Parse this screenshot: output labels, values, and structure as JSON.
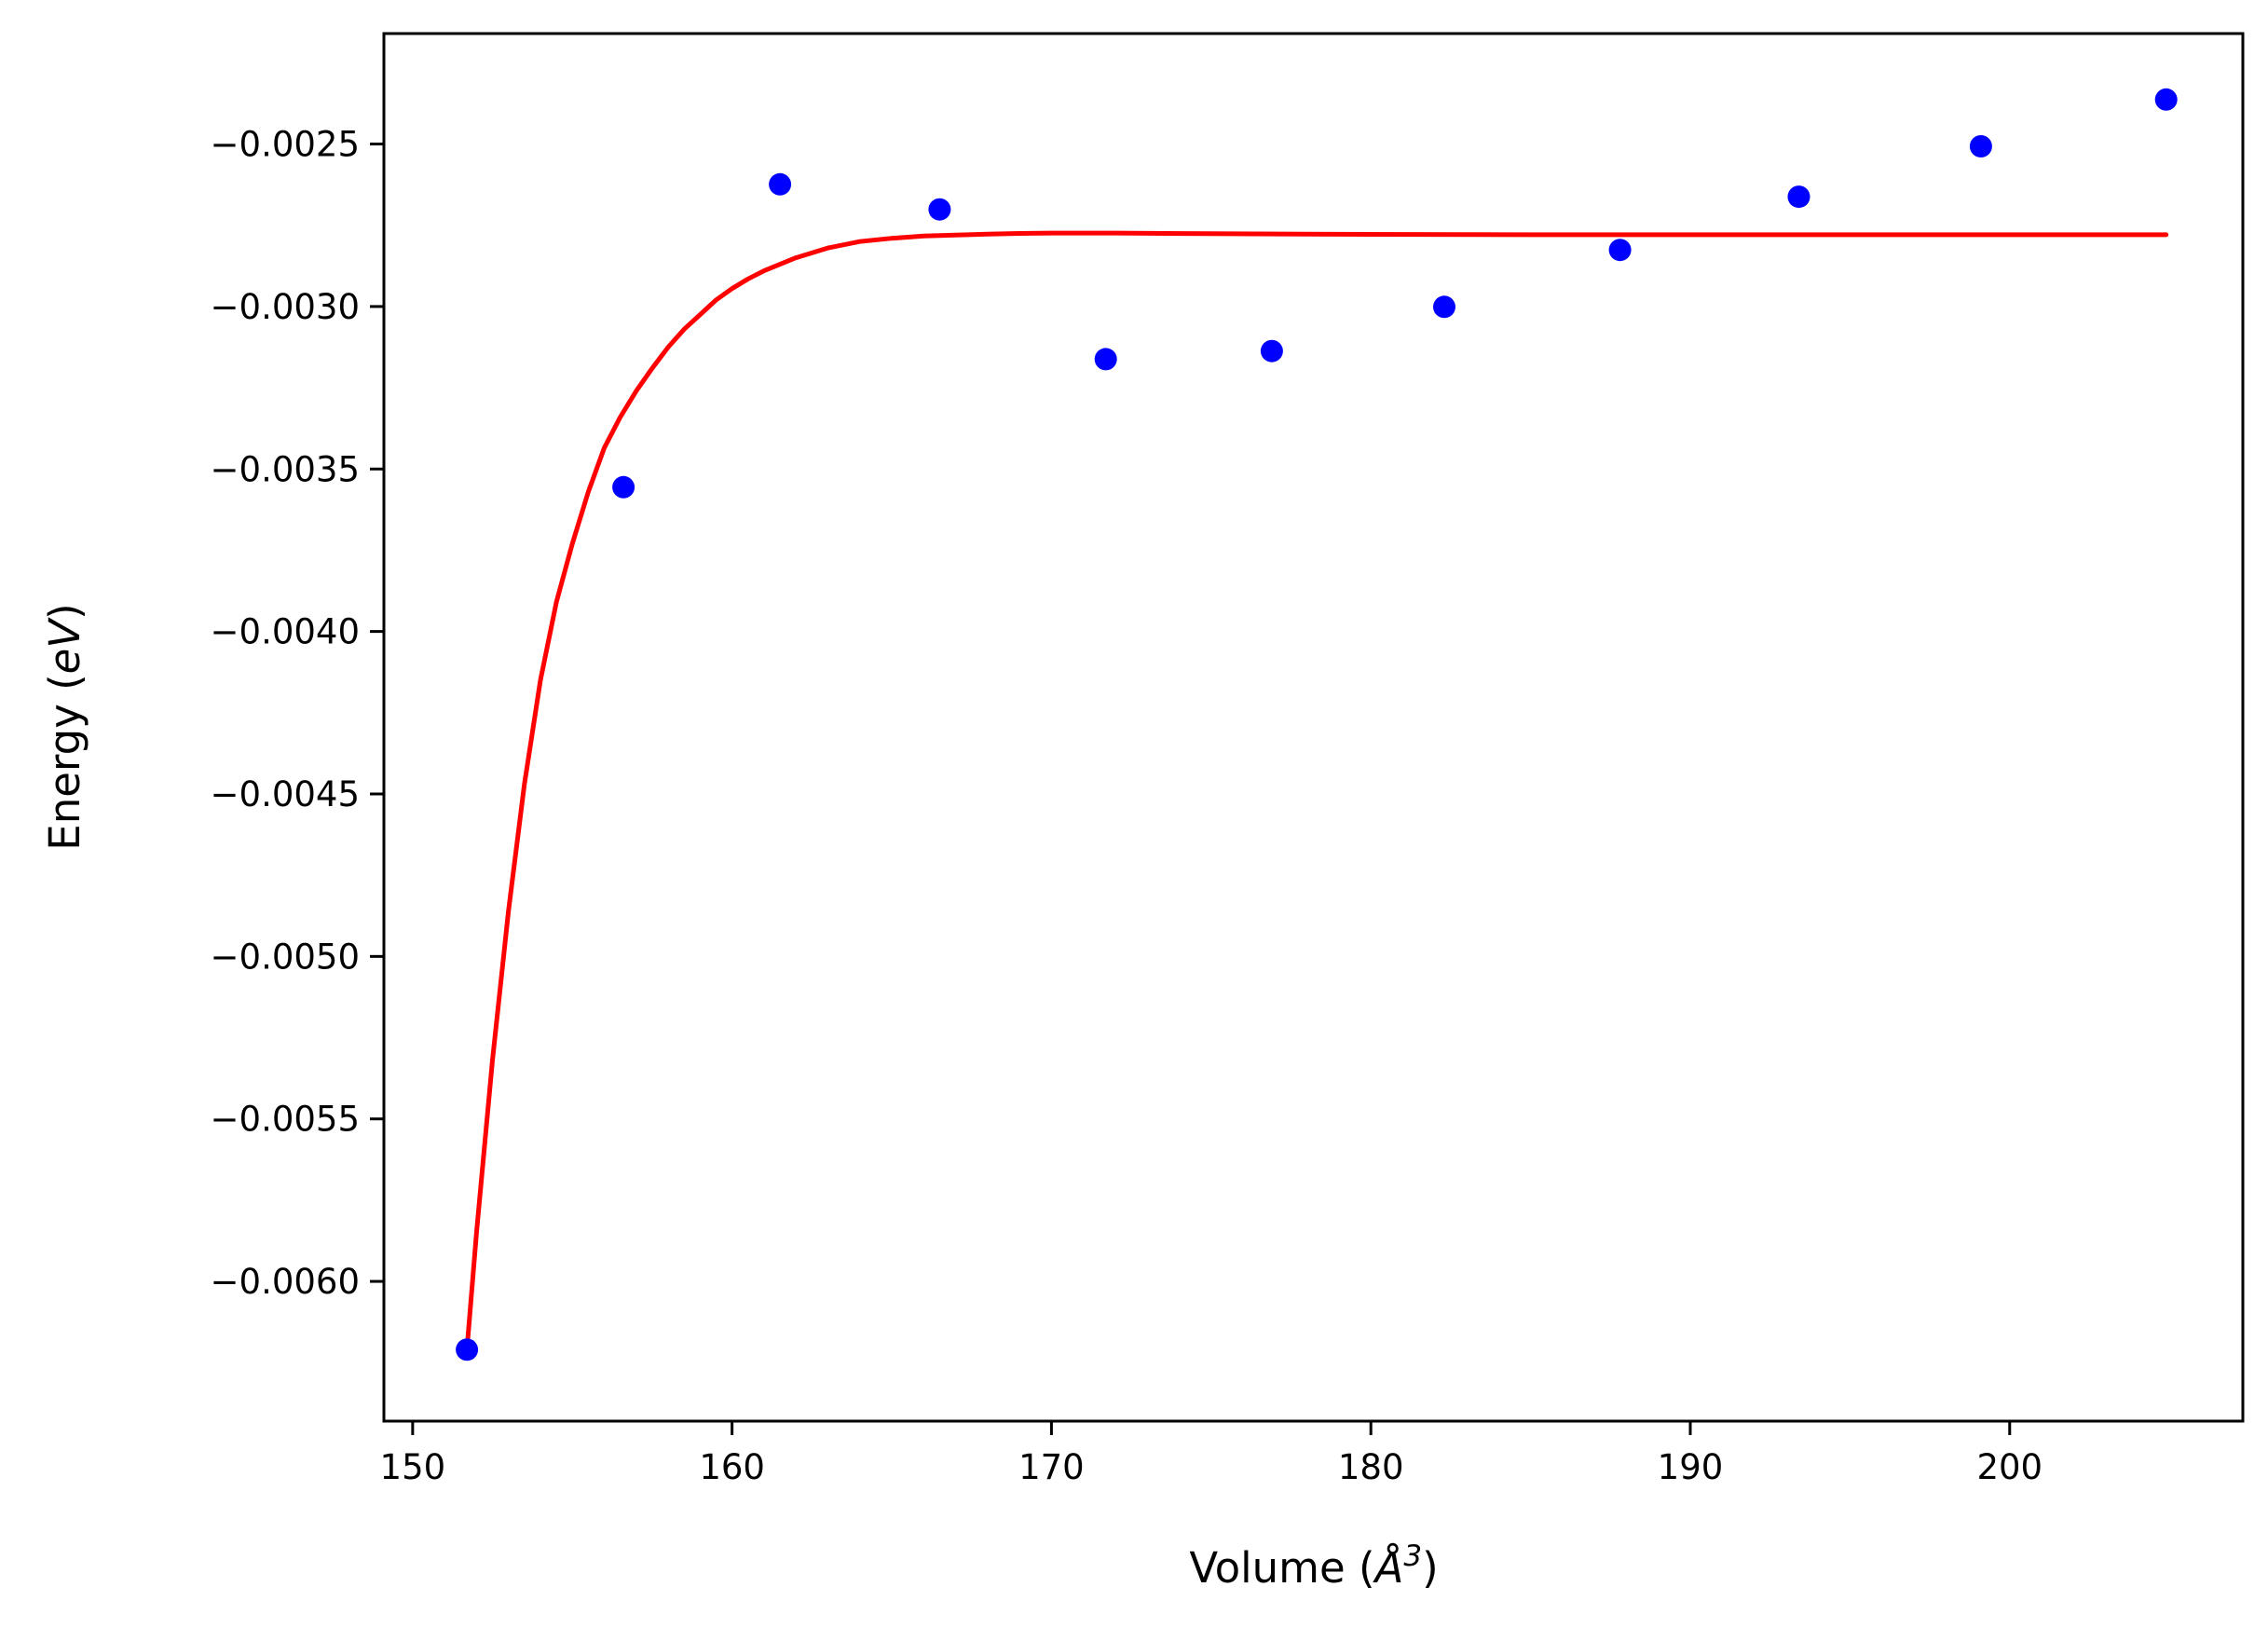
{
  "chart_data": {
    "type": "scatter",
    "xlabel": "Volume (",
    "xlabel_symbol": "Å",
    "xlabel_exponent": "3",
    "xlabel_close": ")",
    "ylabel": "Energy (",
    "ylabel_unit": "eV",
    "ylabel_close": ")",
    "xlim": [
      149.1,
      207.3
    ],
    "ylim": [
      -0.00643,
      -0.00216
    ],
    "xticks": [
      150,
      160,
      170,
      180,
      190,
      200
    ],
    "xtick_labels": [
      "150",
      "160",
      "170",
      "180",
      "190",
      "200"
    ],
    "yticks": [
      -0.0025,
      -0.003,
      -0.0035,
      -0.004,
      -0.0045,
      -0.005,
      -0.0055,
      -0.006
    ],
    "ytick_labels": [
      "−0.0025",
      "−0.0030",
      "−0.0035",
      "−0.0040",
      "−0.0045",
      "−0.0050",
      "−0.0055",
      "−0.0060"
    ],
    "grid": false,
    "legend": "none",
    "series": [
      {
        "kind": "scatter",
        "color": "#0000ff",
        "x": [
          151.7,
          156.6,
          161.5,
          166.5,
          171.7,
          176.9,
          182.3,
          187.8,
          193.4,
          199.1,
          204.9
        ],
        "y": [
          -0.00621,
          -0.003556,
          -0.002624,
          -0.002701,
          -0.003162,
          -0.003137,
          -0.003001,
          -0.002826,
          -0.002662,
          -0.002507,
          -0.002363
        ]
      },
      {
        "kind": "line",
        "color": "#ff0000",
        "x": [
          151.7,
          152.0,
          152.5,
          153.0,
          153.5,
          154.0,
          154.5,
          155.0,
          155.5,
          156.0,
          156.5,
          157.0,
          157.5,
          158.0,
          158.5,
          159.0,
          159.5,
          160.0,
          160.5,
          161.0,
          161.5,
          162.0,
          163.0,
          164.0,
          165.0,
          166.0,
          167.0,
          168.0,
          169.0,
          170.0,
          172.0,
          175.0,
          180.0,
          185.0,
          190.0,
          195.0,
          200.0,
          204.9
        ],
        "y": [
          -0.00621,
          -0.00585,
          -0.00532,
          -0.00486,
          -0.00447,
          -0.00415,
          -0.00391,
          -0.00373,
          -0.00357,
          -0.003435,
          -0.00334,
          -0.00326,
          -0.00319,
          -0.003125,
          -0.00307,
          -0.003025,
          -0.00298,
          -0.002945,
          -0.002915,
          -0.00289,
          -0.00287,
          -0.00285,
          -0.00282,
          -0.0028,
          -0.00279,
          -0.002783,
          -0.00278,
          -0.002777,
          -0.002775,
          -0.002774,
          -0.002774,
          -0.002776,
          -0.002778,
          -0.002779,
          -0.002779,
          -0.002779,
          -0.002779,
          -0.002779
        ]
      }
    ]
  }
}
